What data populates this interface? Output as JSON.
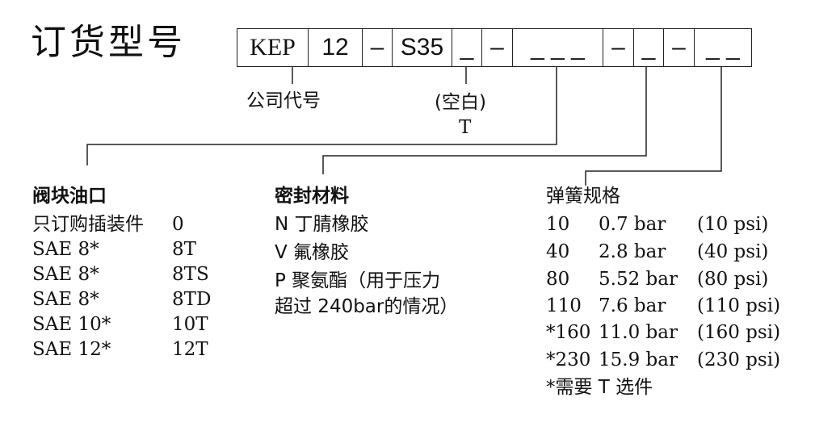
{
  "title": "订货型号",
  "code_boxes": [
    "KEP",
    "12",
    "–",
    "S35",
    "_",
    "–",
    "_ _ _",
    "–",
    "_",
    "–",
    "_ _"
  ],
  "labels": {
    "company_code": "公司代号",
    "blank": "(空白)",
    "t": "T"
  },
  "ports": {
    "heading": "阀块油口",
    "rows": [
      [
        "只订购插装件",
        "0"
      ],
      [
        "SAE 8*",
        "8T"
      ],
      [
        "SAE 8*",
        "8TS"
      ],
      [
        "SAE 8*",
        "8TD"
      ],
      [
        "SAE 10*",
        "10T"
      ],
      [
        "SAE 12*",
        "12T"
      ]
    ]
  },
  "seals": {
    "heading": "密封材料",
    "rows": [
      "N 丁腈橡胶",
      "V 氟橡胶",
      "P 聚氨酯（用于压力",
      "超过 240bar的情况）"
    ]
  },
  "springs": {
    "heading": "弹簧规格",
    "rows": [
      [
        "10",
        "0.7 bar",
        "(10 psi)"
      ],
      [
        "40",
        "2.8 bar",
        "(40 psi)"
      ],
      [
        "80",
        "5.52 bar",
        "(80 psi)"
      ],
      [
        "110",
        "7.6 bar",
        "(110 psi)"
      ],
      [
        "*160",
        "11.0 bar",
        "(160 psi)"
      ],
      [
        "*230",
        "15.9 bar",
        "(230 psi)"
      ]
    ],
    "note": "*需要 T 选件"
  }
}
